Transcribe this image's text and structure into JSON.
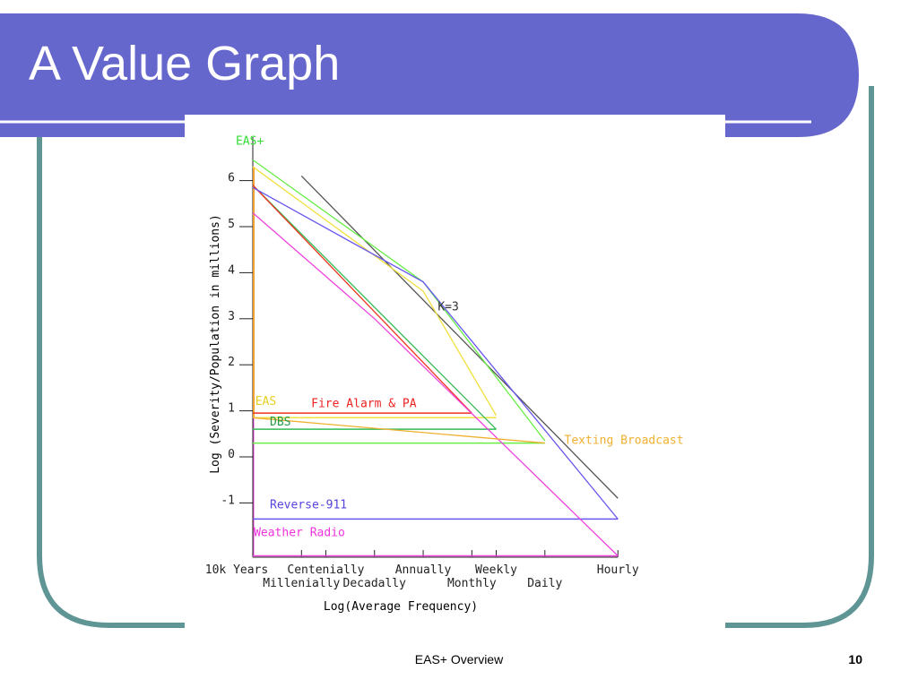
{
  "slide": {
    "title": "A Value Graph",
    "footer": "EAS+ Overview",
    "page_number": "10",
    "colors": {
      "banner": "#6667cc",
      "frame": "#5f9595",
      "rule": "#ffffff"
    }
  },
  "chart_data": {
    "type": "line",
    "title": "",
    "xlabel": "Log(Average Frequency)",
    "ylabel": "Log (Severity/Population in millions)",
    "ylim": [
      -1.3,
      7
    ],
    "xlim": [
      0,
      8
    ],
    "x_ticks_top": [
      {
        "x": 0,
        "label": "10k Years"
      },
      {
        "x": 1.5,
        "label": "Centenially"
      },
      {
        "x": 3.5,
        "label": "Annually"
      },
      {
        "x": 5,
        "label": "Weekly"
      },
      {
        "x": 7.5,
        "label": "Hourly"
      }
    ],
    "x_ticks_bottom": [
      {
        "x": 1,
        "label": "Millenially"
      },
      {
        "x": 2.5,
        "label": "Decadally"
      },
      {
        "x": 4.5,
        "label": "Monthly"
      },
      {
        "x": 6,
        "label": "Daily"
      }
    ],
    "x_tick_marks": [
      0,
      1,
      1.5,
      2.5,
      3.5,
      4.5,
      5,
      6,
      7.5
    ],
    "y_ticks": [
      6,
      5,
      4,
      3,
      2,
      1,
      0,
      -1
    ],
    "series": [
      {
        "name": "K=3",
        "color": "#555555",
        "x": [
          1,
          7.5
        ],
        "y": [
          6.1,
          -0.9
        ]
      },
      {
        "name": "EAS+",
        "color": "#66ee44",
        "x": [
          0,
          3.5,
          6
        ],
        "y": [
          6.45,
          3.8,
          0.35
        ]
      },
      {
        "name": "EAS",
        "color": "#f0e040",
        "x": [
          0,
          3.5,
          5
        ],
        "y": [
          6.3,
          3.6,
          0.9
        ]
      },
      {
        "name": "DBS",
        "color": "#33bb55",
        "x": [
          0,
          5
        ],
        "y": [
          5.9,
          0.6
        ]
      },
      {
        "name": "Fire Alarm & PA",
        "color": "#ee3322",
        "x": [
          0,
          4.5
        ],
        "y": [
          5.9,
          0.95
        ]
      },
      {
        "name": "Reverse-911",
        "color": "#6655ee",
        "x": [
          0,
          3.5,
          7.5
        ],
        "y": [
          5.85,
          3.8,
          -1.35
        ]
      },
      {
        "name": "Weather Radio",
        "color": "#ee44dd",
        "x": [
          0,
          2.5,
          7.5
        ],
        "y": [
          5.3,
          3.0,
          -2.15
        ]
      },
      {
        "name": "Texting Broadcast",
        "color": "#f0b030",
        "x": [
          0,
          6
        ],
        "y": [
          0.85,
          0.3
        ]
      }
    ],
    "thresholds": [
      {
        "name": "EAS+",
        "color": "#66ee44",
        "y": 0.3,
        "x_end": 6
      },
      {
        "name": "DBS",
        "color": "#33bb55",
        "y": 0.6,
        "x_end": 5
      },
      {
        "name": "EAS",
        "color": "#f0e040",
        "y": 0.85,
        "x_end": 5
      },
      {
        "name": "Fire Alarm & PA",
        "color": "#ee3322",
        "y": 0.95,
        "x_end": 4.5
      },
      {
        "name": "Reverse-911",
        "color": "#6655ee",
        "y": -1.35,
        "x_end": 7.5
      },
      {
        "name": "Weather Radio",
        "color": "#ee44dd",
        "y": -2.15,
        "x_end": 7.5
      }
    ],
    "labels": [
      {
        "text": "EAS+",
        "color": "#33dd33",
        "x": -0.35,
        "y": 6.7
      },
      {
        "text": "EAS",
        "color": "#e8d020",
        "x": 0.05,
        "y": 1.05
      },
      {
        "text": "Fire Alarm & PA",
        "color": "#ee2222",
        "x": 1.2,
        "y": 1.0
      },
      {
        "text": "DBS",
        "color": "#229944",
        "x": 0.35,
        "y": 0.6
      },
      {
        "text": "K=3",
        "color": "#333333",
        "x": 3.8,
        "y": 3.1
      },
      {
        "text": "Texting Broadcast",
        "color": "#f0b030",
        "x": 6.4,
        "y": 0.2
      },
      {
        "text": "Reverse-911",
        "color": "#5544dd",
        "x": 0.35,
        "y": -1.2
      },
      {
        "text": "Weather Radio",
        "color": "#ee33dd",
        "x": 0.02,
        "y": -1.8
      }
    ]
  }
}
